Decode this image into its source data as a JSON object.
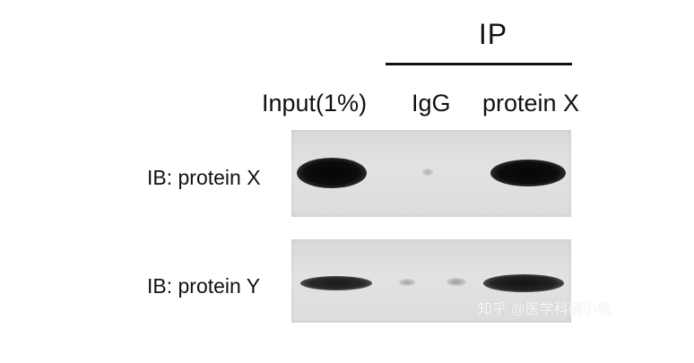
{
  "header": {
    "ip_label": "IP"
  },
  "lanes": {
    "input": "Input(1%)",
    "igg": "IgG",
    "protein_x": "protein X"
  },
  "rows": {
    "protein_x": "IB: protein X",
    "protein_y": "IB: protein Y"
  },
  "watermark": "知乎 @医学科研小坑",
  "colors": {
    "background": "#ffffff",
    "blot_background": "#dedede",
    "band": "#111111",
    "text": "#111111"
  }
}
